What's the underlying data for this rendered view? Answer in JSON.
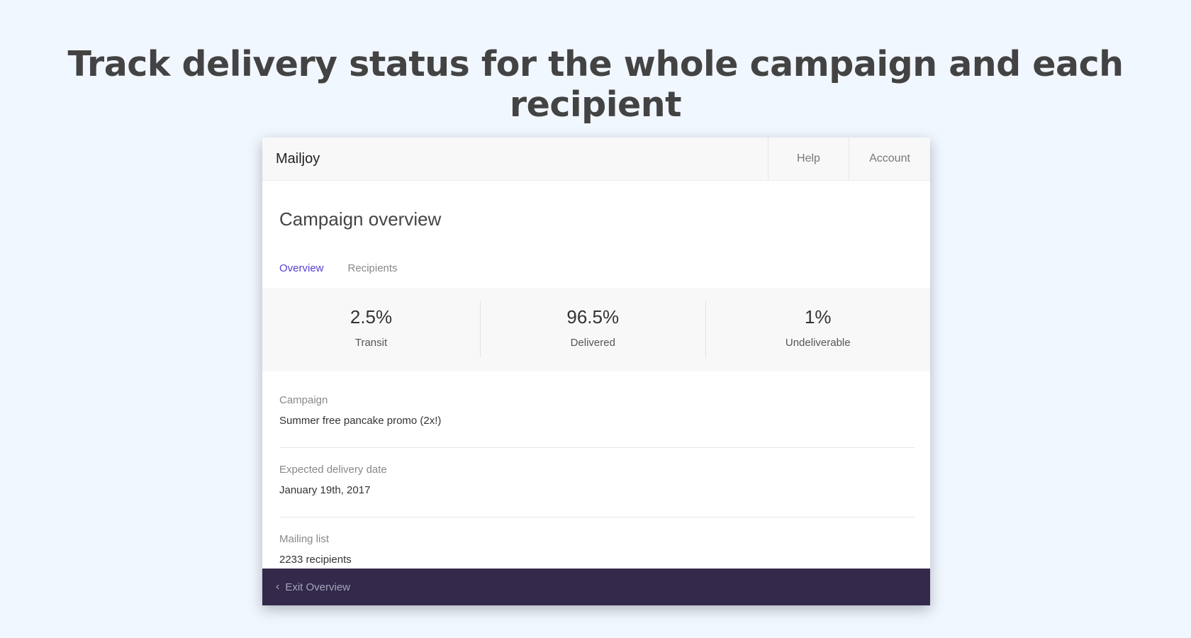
{
  "headline": "Track delivery status for the whole campaign and each recipient",
  "app": {
    "brand": "Mailjoy",
    "nav": {
      "help": "Help",
      "account": "Account"
    }
  },
  "page": {
    "title": "Campaign overview",
    "tabs": [
      {
        "label": "Overview",
        "active": true
      },
      {
        "label": "Recipients",
        "active": false
      }
    ]
  },
  "stats": [
    {
      "value": "2.5%",
      "label": "Transit"
    },
    {
      "value": "96.5%",
      "label": "Delivered"
    },
    {
      "value": "1%",
      "label": "Undeliverable"
    }
  ],
  "details": [
    {
      "label": "Campaign",
      "value": "Summer free pancake promo (2x!)"
    },
    {
      "label": "Expected delivery date",
      "value": "January 19th, 2017"
    },
    {
      "label": "Mailing list",
      "value": "2233 recipients"
    }
  ],
  "footer": {
    "exit_label": "Exit Overview",
    "icon": "chevron-left-icon"
  },
  "colors": {
    "background": "#f1f7fe",
    "accent": "#5a3fd0",
    "footer": "#33294b"
  }
}
